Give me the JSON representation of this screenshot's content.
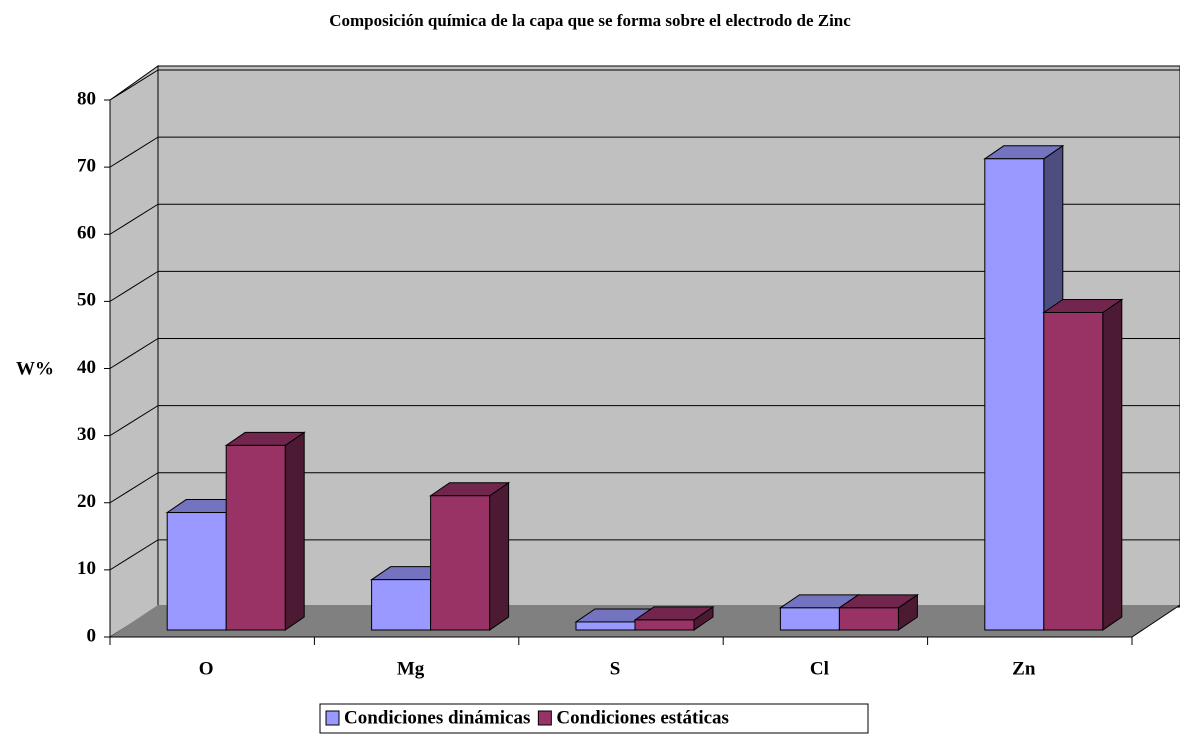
{
  "chart_data": {
    "type": "bar3d",
    "title": "Composición química de la capa que se forma sobre el electrodo de Zinc",
    "y_label": "W%",
    "categories": [
      "O",
      "Mg",
      "S",
      "Cl",
      "Zn"
    ],
    "series": [
      {
        "name": "Condiciones dinámicas",
        "color": "#9999ff",
        "values": [
          17.5,
          7.5,
          1.2,
          3.3,
          70.2
        ]
      },
      {
        "name": "Condiciones estáticas",
        "color": "#993366",
        "values": [
          27.5,
          20,
          1.5,
          3.3,
          47.3
        ]
      }
    ],
    "ylim": [
      0,
      80
    ],
    "yticks": [
      0,
      10,
      20,
      30,
      40,
      50,
      60,
      70,
      80
    ],
    "grid": true,
    "legend": "bottom"
  }
}
